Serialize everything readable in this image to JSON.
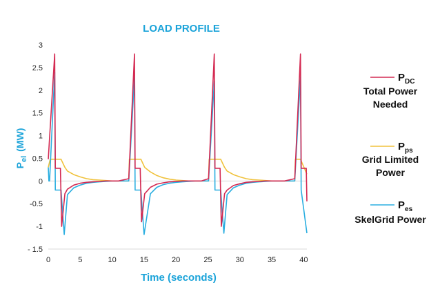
{
  "chart_data": {
    "type": "line",
    "title": "LOAD PROFILE",
    "xlabel": "Time (seconds)",
    "ylabel": {
      "main": "P",
      "sub": "el",
      "unit": "(MW)"
    },
    "xlim": [
      0,
      40.5
    ],
    "ylim": [
      -1.5,
      3
    ],
    "xticks": [
      0,
      5,
      10,
      15,
      20,
      25,
      30,
      35,
      40
    ],
    "yticks": [
      -1.5,
      -1,
      -0.5,
      0,
      0.5,
      1,
      1.5,
      2,
      2.5,
      3
    ],
    "ytick_labels": [
      "- 1.5",
      "-1",
      "-0.5",
      "0",
      "0.5",
      "1",
      "1.5",
      "2",
      "2.5",
      "3"
    ],
    "grid": false,
    "legend_placement": "right",
    "series": [
      {
        "symbol": "P",
        "sub": "DC",
        "desc": [
          "Total Power",
          "Needed"
        ],
        "color": "#d42a52",
        "x": [
          0,
          1.0,
          1.1,
          1.9,
          2.1,
          2.6,
          3,
          4,
          5,
          6,
          7,
          8,
          9,
          10,
          11,
          12.6,
          13.5,
          13.6,
          14.4,
          14.6,
          15.1,
          16,
          17,
          18,
          19,
          20,
          21,
          22,
          23,
          24,
          25.1,
          26.0,
          26.1,
          26.9,
          27.1,
          27.6,
          28,
          29,
          30,
          31,
          32,
          33,
          34,
          35,
          36,
          37,
          38.6,
          39.5,
          39.6,
          40.4,
          40.5
        ],
        "y": [
          0.48,
          2.8,
          0.28,
          0.28,
          -1.0,
          -0.28,
          -0.18,
          -0.09,
          -0.05,
          -0.03,
          -0.02,
          -0.01,
          0,
          0,
          0,
          0.05,
          2.8,
          0.28,
          0.28,
          -0.9,
          -0.28,
          -0.14,
          -0.07,
          -0.04,
          -0.02,
          -0.01,
          0,
          0,
          0,
          0,
          0.05,
          2.8,
          0.28,
          0.28,
          -1.0,
          -0.28,
          -0.2,
          -0.1,
          -0.06,
          -0.03,
          -0.02,
          -0.01,
          0,
          0,
          0,
          0,
          0.05,
          2.8,
          0.28,
          0.28,
          -0.45
        ]
      },
      {
        "symbol": "P",
        "sub": "ps",
        "desc": [
          "Grid Limited",
          "Power"
        ],
        "color": "#f0c23c",
        "x": [
          0,
          0.3,
          1.0,
          2.0,
          2.6,
          3,
          4,
          5,
          6,
          7,
          8,
          9,
          10,
          11,
          12.6,
          12.7,
          13.5,
          14.5,
          15.1,
          16,
          17,
          18,
          19,
          20,
          21,
          22,
          23,
          24,
          25.1,
          25.2,
          26.0,
          27.0,
          27.6,
          28,
          29,
          30,
          31,
          32,
          33,
          34,
          35,
          36,
          37,
          38.6,
          38.7,
          39.5,
          40.5
        ],
        "y": [
          0.3,
          0.48,
          0.48,
          0.48,
          0.3,
          0.22,
          0.14,
          0.09,
          0.05,
          0.03,
          0.02,
          0.01,
          0,
          0,
          0,
          0.48,
          0.48,
          0.48,
          0.3,
          0.2,
          0.12,
          0.07,
          0.04,
          0.02,
          0.01,
          0,
          0,
          0,
          0,
          0.48,
          0.48,
          0.48,
          0.3,
          0.22,
          0.14,
          0.09,
          0.05,
          0.03,
          0.02,
          0.01,
          0,
          0,
          0,
          0,
          0.48,
          0.48,
          0.15
        ]
      },
      {
        "symbol": "P",
        "sub": "es",
        "desc": [
          "SkelGrid Power"
        ],
        "color": "#2aaee0",
        "x": [
          0,
          0.1,
          0.2,
          1.0,
          1.1,
          2.0,
          2.5,
          3,
          4,
          5,
          6,
          7,
          8,
          9,
          10,
          11,
          12.6,
          13.5,
          13.6,
          14.5,
          15.0,
          16,
          17,
          18,
          19,
          20,
          21,
          22,
          23,
          24,
          25.1,
          26.0,
          26.1,
          27.0,
          27.5,
          28,
          29,
          30,
          31,
          32,
          33,
          34,
          35,
          36,
          37,
          38.6,
          39.5,
          39.6,
          40.5
        ],
        "y": [
          0.3,
          0.0,
          0.0,
          2.4,
          -0.2,
          -0.2,
          -1.18,
          -0.3,
          -0.15,
          -0.09,
          -0.05,
          -0.03,
          -0.02,
          -0.01,
          0,
          0,
          0,
          2.3,
          -0.2,
          -0.2,
          -1.18,
          -0.28,
          -0.14,
          -0.08,
          -0.05,
          -0.03,
          -0.02,
          -0.01,
          0,
          0,
          0,
          2.2,
          -0.2,
          -0.2,
          -1.15,
          -0.3,
          -0.15,
          -0.09,
          -0.05,
          -0.03,
          -0.02,
          -0.01,
          0,
          0,
          0,
          0,
          2.3,
          -0.2,
          -1.15
        ]
      }
    ]
  }
}
